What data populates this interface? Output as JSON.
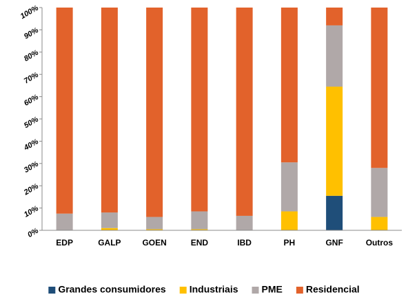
{
  "chart_data": {
    "type": "bar",
    "stacked": true,
    "categories": [
      "EDP",
      "GALP",
      "GOEN",
      "END",
      "IBD",
      "PH",
      "GNF",
      "Outros"
    ],
    "series": [
      {
        "name": "Grandes consumidores",
        "color": "#1f4e79",
        "values": [
          0,
          0,
          0,
          0,
          0,
          0,
          15.5,
          0
        ]
      },
      {
        "name": "Industriais",
        "color": "#ffc000",
        "values": [
          0,
          1,
          0.5,
          0.5,
          0,
          8.5,
          49,
          6
        ]
      },
      {
        "name": "PME",
        "color": "#b0a8a8",
        "values": [
          7.5,
          7,
          5.5,
          8,
          6.5,
          22,
          27.5,
          22
        ]
      },
      {
        "name": "Residencial",
        "color": "#e2622b",
        "values": [
          92.5,
          92,
          94,
          91.5,
          93.5,
          69.5,
          8,
          72
        ]
      }
    ],
    "ylim": [
      0,
      100
    ],
    "yticks": [
      {
        "value": 0,
        "label": "0%"
      },
      {
        "value": 10,
        "label": "10%"
      },
      {
        "value": 20,
        "label": "20%"
      },
      {
        "value": 30,
        "label": "30%"
      },
      {
        "value": 40,
        "label": "40%"
      },
      {
        "value": 50,
        "label": "50%"
      },
      {
        "value": 60,
        "label": "60%"
      },
      {
        "value": 70,
        "label": "70%"
      },
      {
        "value": 80,
        "label": "80%"
      },
      {
        "value": 90,
        "label": "90%"
      },
      {
        "value": 100,
        "label": "100%"
      }
    ],
    "grid": false,
    "legend": "bottom"
  }
}
